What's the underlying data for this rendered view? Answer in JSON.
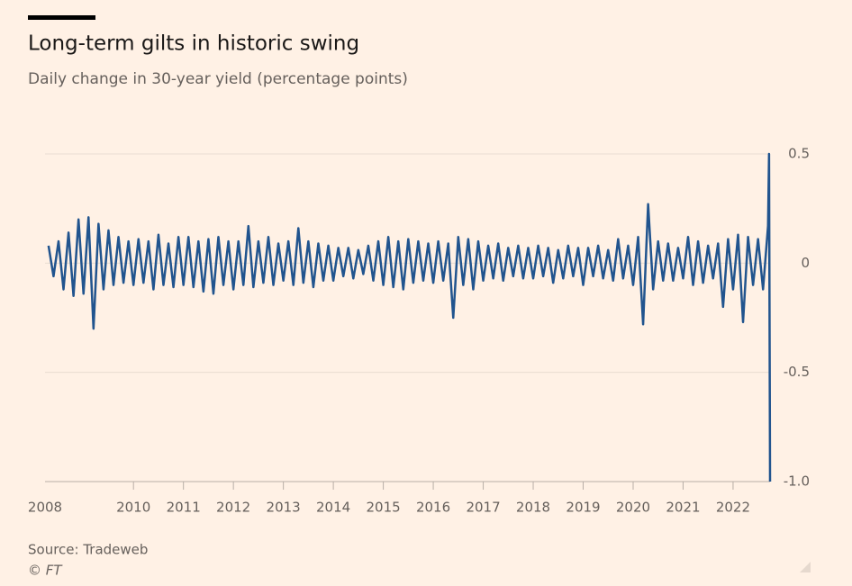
{
  "chart_data": {
    "type": "line",
    "title": "Long-term gilts in historic swing",
    "subtitle": "Daily change in 30-year yield (percentage points)",
    "source": "Source: Tradeweb",
    "credit": "© FT",
    "x": [
      2008.3,
      2008.4,
      2008.5,
      2008.6,
      2008.7,
      2008.8,
      2008.9,
      2009.0,
      2009.1,
      2009.2,
      2009.3,
      2009.4,
      2009.5,
      2009.6,
      2009.7,
      2009.8,
      2009.9,
      2010.0,
      2010.1,
      2010.2,
      2010.3,
      2010.4,
      2010.5,
      2010.6,
      2010.7,
      2010.8,
      2010.9,
      2011.0,
      2011.1,
      2011.2,
      2011.3,
      2011.4,
      2011.5,
      2011.6,
      2011.7,
      2011.8,
      2011.9,
      2012.0,
      2012.1,
      2012.2,
      2012.3,
      2012.4,
      2012.5,
      2012.6,
      2012.7,
      2012.8,
      2012.9,
      2013.0,
      2013.1,
      2013.2,
      2013.3,
      2013.4,
      2013.5,
      2013.6,
      2013.7,
      2013.8,
      2013.9,
      2014.0,
      2014.1,
      2014.2,
      2014.3,
      2014.4,
      2014.5,
      2014.6,
      2014.7,
      2014.8,
      2014.9,
      2015.0,
      2015.1,
      2015.2,
      2015.3,
      2015.4,
      2015.5,
      2015.6,
      2015.7,
      2015.8,
      2015.9,
      2016.0,
      2016.1,
      2016.2,
      2016.3,
      2016.4,
      2016.5,
      2016.6,
      2016.7,
      2016.8,
      2016.9,
      2017.0,
      2017.1,
      2017.2,
      2017.3,
      2017.4,
      2017.5,
      2017.6,
      2017.7,
      2017.8,
      2017.9,
      2018.0,
      2018.1,
      2018.2,
      2018.3,
      2018.4,
      2018.5,
      2018.6,
      2018.7,
      2018.8,
      2018.9,
      2019.0,
      2019.1,
      2019.2,
      2019.3,
      2019.4,
      2019.5,
      2019.6,
      2019.7,
      2019.8,
      2019.9,
      2020.0,
      2020.1,
      2020.2,
      2020.3,
      2020.4,
      2020.5,
      2020.6,
      2020.7,
      2020.8,
      2020.9,
      2021.0,
      2021.1,
      2021.2,
      2021.3,
      2021.4,
      2021.5,
      2021.6,
      2021.7,
      2021.8,
      2021.9,
      2022.0,
      2022.1,
      2022.2,
      2022.3,
      2022.4,
      2022.5,
      2022.6,
      2022.7,
      2022.72,
      2022.74
    ],
    "series": [
      {
        "color": "#21548e",
        "values": [
          0.08,
          -0.06,
          0.1,
          -0.12,
          0.14,
          -0.15,
          0.2,
          -0.14,
          0.21,
          -0.3,
          0.18,
          -0.12,
          0.15,
          -0.1,
          0.12,
          -0.09,
          0.1,
          -0.1,
          0.11,
          -0.09,
          0.1,
          -0.12,
          0.13,
          -0.1,
          0.09,
          -0.11,
          0.12,
          -0.1,
          0.12,
          -0.11,
          0.1,
          -0.13,
          0.11,
          -0.14,
          0.12,
          -0.1,
          0.1,
          -0.12,
          0.1,
          -0.1,
          0.17,
          -0.11,
          0.1,
          -0.09,
          0.12,
          -0.1,
          0.09,
          -0.08,
          0.1,
          -0.1,
          0.16,
          -0.09,
          0.1,
          -0.11,
          0.09,
          -0.08,
          0.08,
          -0.08,
          0.07,
          -0.06,
          0.07,
          -0.07,
          0.06,
          -0.05,
          0.08,
          -0.08,
          0.1,
          -0.1,
          0.12,
          -0.11,
          0.1,
          -0.12,
          0.11,
          -0.09,
          0.1,
          -0.08,
          0.09,
          -0.09,
          0.1,
          -0.08,
          0.09,
          -0.25,
          0.12,
          -0.1,
          0.11,
          -0.12,
          0.1,
          -0.08,
          0.08,
          -0.07,
          0.09,
          -0.08,
          0.07,
          -0.06,
          0.08,
          -0.07,
          0.07,
          -0.07,
          0.08,
          -0.06,
          0.07,
          -0.09,
          0.06,
          -0.07,
          0.08,
          -0.06,
          0.07,
          -0.1,
          0.07,
          -0.06,
          0.08,
          -0.07,
          0.06,
          -0.08,
          0.11,
          -0.07,
          0.08,
          -0.1,
          0.12,
          -0.28,
          0.27,
          -0.12,
          0.1,
          -0.08,
          0.09,
          -0.08,
          0.07,
          -0.07,
          0.12,
          -0.1,
          0.1,
          -0.09,
          0.08,
          -0.07,
          0.09,
          -0.2,
          0.11,
          -0.12,
          0.13,
          -0.27,
          0.12,
          -0.1,
          0.11,
          -0.12,
          0.17,
          0.5,
          -1.0
        ]
      }
    ],
    "xlim": [
      2008.23,
      2022.74
    ],
    "xticks": [
      2008,
      2010,
      2011,
      2012,
      2013,
      2014,
      2015,
      2016,
      2017,
      2018,
      2019,
      2020,
      2021,
      2022
    ],
    "ylim": [
      -1.0,
      0.5
    ],
    "yticks": [
      0.5,
      0,
      -0.5,
      {
        "value": -1.0,
        "label": "-1.0"
      }
    ],
    "grid": true
  }
}
